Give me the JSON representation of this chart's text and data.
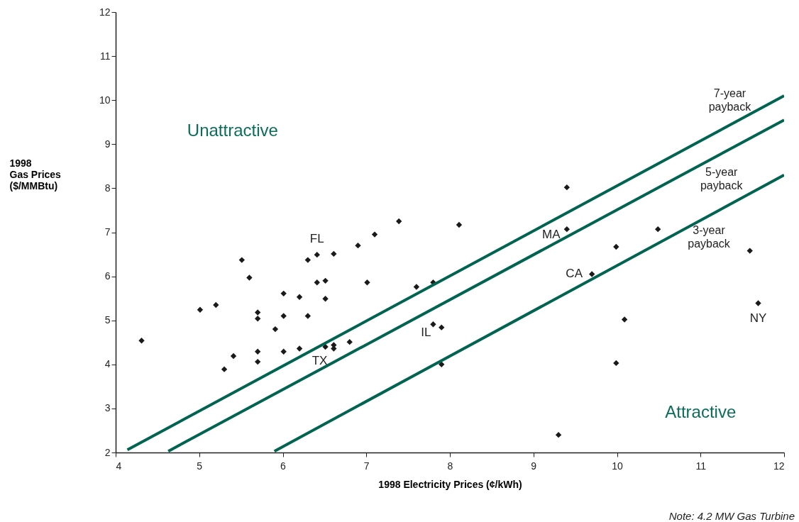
{
  "chart_data": {
    "type": "scatter",
    "xlabel": "1998 Electricity Prices (¢/kWh)",
    "ylabel": "1998\nGas Prices\n($/MMBtu)",
    "xlim": [
      4,
      12
    ],
    "xticks": [
      4,
      5,
      6,
      7,
      8,
      9,
      10,
      11,
      12
    ],
    "ylim": [
      2,
      12
    ],
    "yticks": [
      2,
      3,
      4,
      5,
      6,
      7,
      8,
      9,
      10,
      11,
      12
    ],
    "grid": false,
    "series": [
      {
        "marker": "diamond",
        "color": "#1a1a1a",
        "x": [
          4.31,
          5.01,
          5.2,
          5.51,
          5.6,
          5.7,
          5.7,
          5.41,
          5.3,
          5.7,
          5.7,
          6.01,
          6.01,
          5.91,
          6.01,
          6.2,
          6.2,
          6.3,
          6.3,
          6.41,
          6.61,
          6.41,
          6.51,
          6.51,
          6.51,
          6.61,
          6.61,
          6.8,
          6.9,
          7.1,
          7.01,
          7.39,
          8.11,
          9.4,
          9.4,
          9.99,
          9.7,
          7.6,
          7.8,
          7.8,
          7.9,
          7.9,
          9.99,
          10.49,
          11.59,
          11.69,
          10.09,
          9.3
        ],
        "values": [
          4.54,
          5.24,
          5.35,
          6.37,
          5.97,
          5.18,
          5.04,
          4.19,
          3.89,
          4.29,
          4.06,
          5.61,
          5.1,
          4.8,
          4.29,
          5.53,
          4.36,
          6.37,
          5.1,
          6.49,
          6.51,
          5.86,
          5.9,
          5.49,
          4.4,
          4.44,
          4.36,
          4.51,
          6.7,
          6.95,
          5.86,
          7.25,
          7.17,
          8.02,
          7.07,
          6.67,
          6.05,
          5.76,
          5.86,
          4.91,
          4.84,
          4.0,
          4.03,
          7.07,
          6.58,
          5.39,
          5.02,
          2.4
        ]
      },
      {
        "type": "line",
        "name": "7-year payback",
        "color": "#006450",
        "line_style": "solid",
        "x": [
          4.14,
          12
        ],
        "values": [
          2.06,
          10.1
        ]
      },
      {
        "type": "line",
        "name": "5-year payback",
        "color": "#006450",
        "line_style": "solid",
        "x": [
          4.63,
          12
        ],
        "values": [
          2.03,
          9.55
        ]
      },
      {
        "type": "line",
        "name": "3-year payback",
        "color": "#006450",
        "line_style": "solid",
        "x": [
          5.9,
          12
        ],
        "values": [
          2.03,
          8.3
        ]
      }
    ],
    "annotations": [
      "Unattractive",
      "Attractive",
      {
        "text": "FL",
        "x": 6.41,
        "y": 6.49
      },
      {
        "text": "TX",
        "x": 6.51,
        "y": 4.4
      },
      {
        "text": "IL",
        "x": 7.8,
        "y": 4.91
      },
      {
        "text": "MA",
        "x": 9.4,
        "y": 7.07
      },
      {
        "text": "CA",
        "x": 9.7,
        "y": 6.05
      },
      {
        "text": "NY",
        "x": 11.69,
        "y": 5.39
      },
      "Note: 4.2 MW Gas Turbine"
    ]
  }
}
